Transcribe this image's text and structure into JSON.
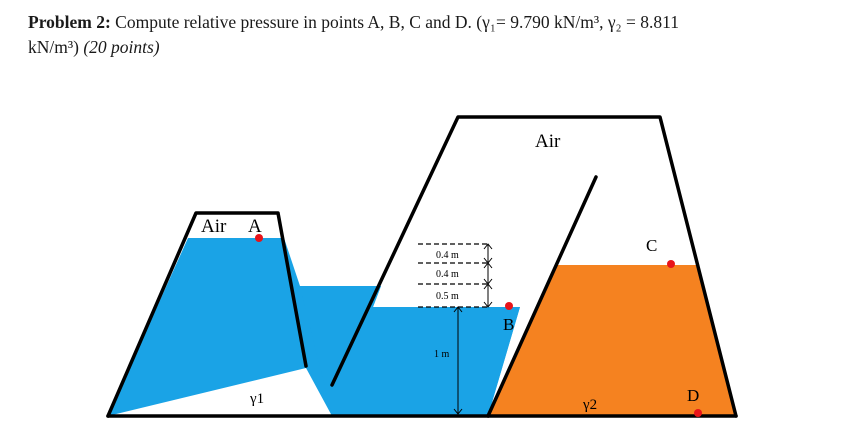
{
  "problem": {
    "heading": "Problem 2:",
    "line1": " Compute relative pressure in points A, B, C and D. (γ₁= 9.790 kN/m³, γ₂ = 8.811",
    "line2": "kN/m³) ",
    "points": "(20 points)"
  },
  "diagram": {
    "air_left": "Air",
    "air_top": "Air",
    "point_a": "A",
    "point_b": "B",
    "point_c": "C",
    "point_d": "D",
    "gamma1": "γ1",
    "gamma2": "γ2",
    "dim_1": "0.4 m",
    "dim_2": "0.4 m",
    "dim_3": "0.5 m",
    "dim_4": "1 m",
    "colors": {
      "water": "#1aa3e6",
      "oil": "#f58220",
      "point": "#e8141a",
      "outline": "#000000"
    }
  }
}
